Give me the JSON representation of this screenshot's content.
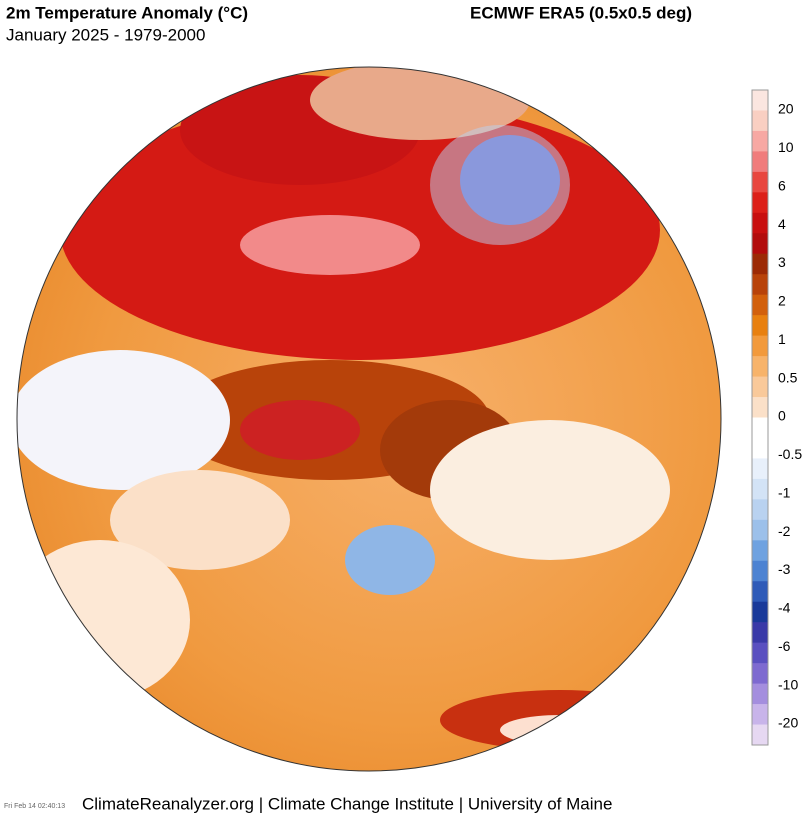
{
  "header": {
    "title": "2m Temperature Anomaly (°C)",
    "subtitle": "January 2025 - 1979-2000",
    "dataset": "ECMWF ERA5 (0.5x0.5 deg)"
  },
  "colorbar": {
    "labels": [
      20,
      10,
      6,
      4,
      3,
      2,
      1,
      0.5,
      0,
      -0.5,
      -1,
      -2,
      -3,
      -4,
      -6,
      -10,
      -20
    ],
    "colors": [
      "#fbe6e0",
      "#f9cfc2",
      "#f7a8a3",
      "#f07c7c",
      "#e8473f",
      "#dc1f18",
      "#c80f0f",
      "#b20c0c",
      "#9c2a05",
      "#b8430a",
      "#d2600c",
      "#e8800f",
      "#f29a3c",
      "#f7b36a",
      "#f9c99a",
      "#fbe0c8",
      "#ffffff",
      "#ffffff",
      "#e8f0fb",
      "#d3e3f6",
      "#b9d2f0",
      "#9cc0ea",
      "#6fa2e0",
      "#4d83d2",
      "#2f5bb8",
      "#1a3a9a",
      "#3a3aa8",
      "#5a50c0",
      "#7e6ad0",
      "#a48ede",
      "#c8b4ea",
      "#e6d8f2"
    ]
  },
  "footer": {
    "credit": "ClimateReanalyzer.org | Climate Change Institute | University of Maine",
    "timestamp": "Fri Feb 14 02:40:13"
  }
}
